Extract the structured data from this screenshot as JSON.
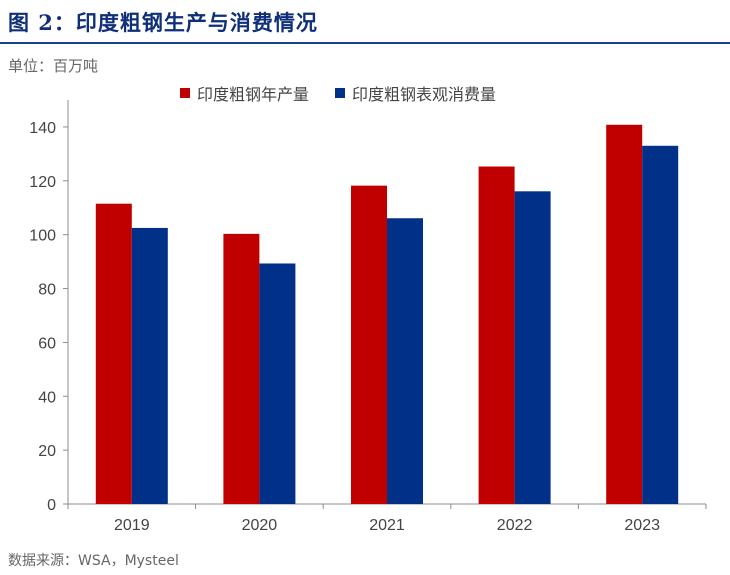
{
  "header": {
    "title": "图 2：印度粗钢生产与消费情况",
    "unit": "单位：百万吨",
    "source": "数据来源：WSA，Mysteel"
  },
  "colors": {
    "production": "#c00000",
    "consumption": "#003087",
    "title": "#0f2f78"
  },
  "chart_data": {
    "type": "bar",
    "categories": [
      "2019",
      "2020",
      "2021",
      "2022",
      "2023"
    ],
    "series": [
      {
        "name": "印度粗钢年产量",
        "values": [
          111.5,
          100.3,
          118.2,
          125.3,
          140.8
        ]
      },
      {
        "name": "印度粗钢表观消费量",
        "values": [
          102.5,
          89.3,
          106.1,
          116.1,
          133.0
        ]
      }
    ],
    "title": "",
    "xlabel": "",
    "ylabel": "",
    "ylim": [
      0,
      150
    ],
    "yticks": [
      0,
      20,
      40,
      60,
      80,
      100,
      120,
      140
    ],
    "grid": false,
    "legend_position": "top"
  }
}
